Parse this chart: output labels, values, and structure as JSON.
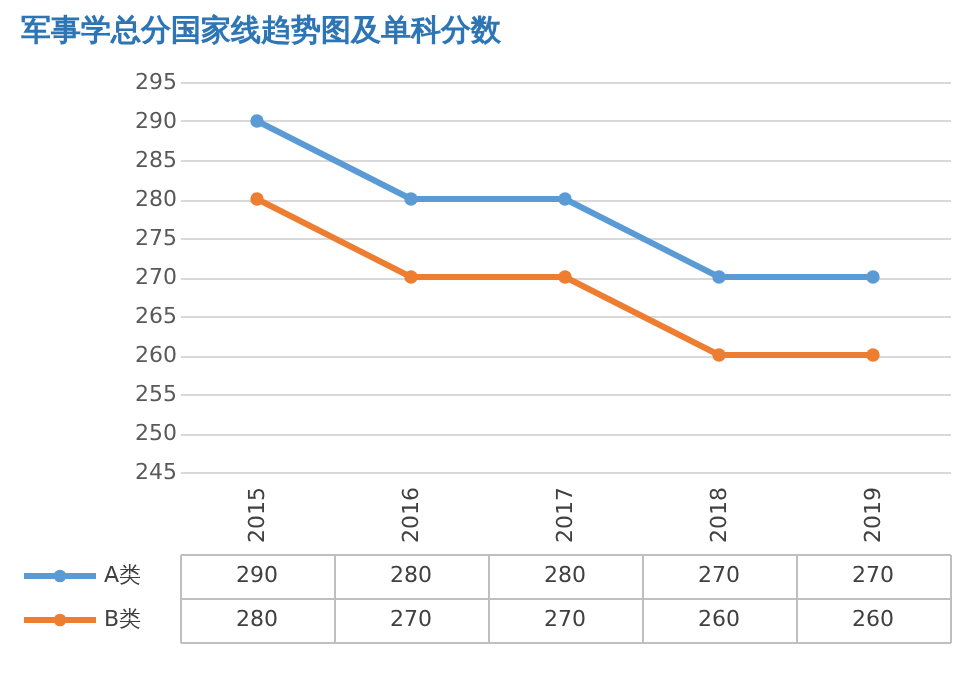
{
  "chart_data": {
    "type": "line",
    "title": "军事学总分国家线趋势图及单科分数",
    "categories": [
      "2015",
      "2016",
      "2017",
      "2018",
      "2019"
    ],
    "series": [
      {
        "name": "A类",
        "color": "#5b9bd5",
        "values": [
          290,
          280,
          280,
          270,
          270
        ]
      },
      {
        "name": "B类",
        "color": "#ed7d31",
        "values": [
          280,
          270,
          270,
          260,
          260
        ]
      }
    ],
    "ylim": [
      245,
      295
    ],
    "yticks": [
      245,
      250,
      255,
      260,
      265,
      270,
      275,
      280,
      285,
      290,
      295
    ],
    "grid": "y",
    "marker": "circle",
    "legend": "bottom left",
    "data_labels": true
  }
}
